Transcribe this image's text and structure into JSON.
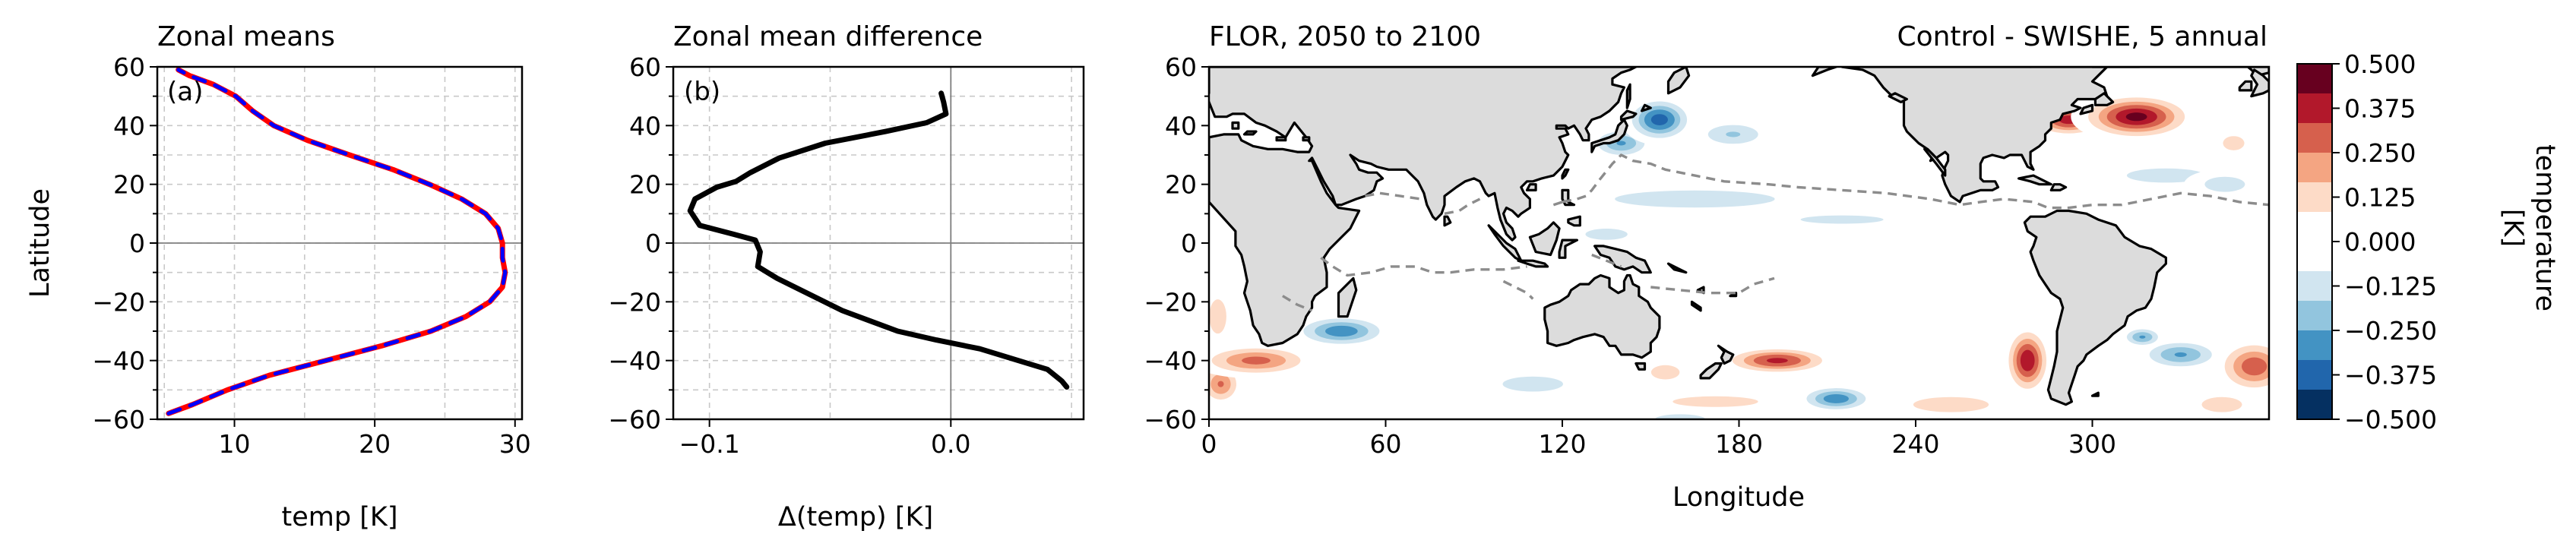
{
  "chart_data": [
    {
      "panel": "a",
      "type": "line",
      "title": "Zonal means",
      "panel_label": "(a)",
      "xlabel": "temp [K]",
      "ylabel": "Latitude",
      "xlim": [
        4.5,
        30.5
      ],
      "ylim": [
        -60,
        60
      ],
      "xticks": [
        10,
        20,
        30
      ],
      "yticks": [
        -60,
        -40,
        -20,
        0,
        20,
        40,
        60
      ],
      "grid": true,
      "series": [
        {
          "color": "#ff0000",
          "x": [
            5.3,
            7.0,
            9.5,
            12.5,
            16.5,
            20.5,
            24.0,
            26.5,
            28.2,
            29.1,
            29.3,
            29.1,
            29.1,
            28.8,
            27.9,
            26.2,
            23.9,
            21.3,
            18.2,
            15.2,
            12.8,
            11.3,
            10.1,
            8.5,
            6.8,
            6.0
          ],
          "y": [
            -58,
            -55,
            -50,
            -45,
            -40,
            -35,
            -30,
            -25,
            -20,
            -15,
            -10,
            -5,
            0,
            5,
            10,
            15,
            20,
            25,
            30,
            35,
            40,
            45,
            50,
            54,
            57,
            59
          ]
        },
        {
          "color": "#0000ff",
          "dashed": true,
          "x": [
            5.3,
            7.0,
            9.5,
            12.5,
            16.5,
            20.5,
            24.0,
            26.5,
            28.2,
            29.1,
            29.3,
            29.1,
            29.1,
            28.8,
            27.9,
            26.2,
            23.9,
            21.3,
            18.2,
            15.2,
            12.8,
            11.3,
            10.1,
            8.5,
            6.8,
            6.0
          ],
          "y": [
            -58,
            -55,
            -50,
            -45,
            -40,
            -35,
            -30,
            -25,
            -20,
            -15,
            -10,
            -5,
            0,
            5,
            10,
            15,
            20,
            25,
            30,
            35,
            40,
            45,
            50,
            54,
            57,
            59
          ]
        }
      ]
    },
    {
      "panel": "b",
      "type": "line",
      "title": "Zonal mean difference",
      "panel_label": "(b)",
      "xlabel": "Δ(temp) [K]",
      "ylabel": "",
      "xlim": [
        -0.115,
        0.055
      ],
      "ylim": [
        -60,
        60
      ],
      "xticks": [
        -0.1,
        0.0
      ],
      "xticklabels": [
        "−0.1",
        "0.0"
      ],
      "yticks": [
        -60,
        -40,
        -20,
        0,
        20,
        40,
        60
      ],
      "grid": true,
      "series": [
        {
          "color": "#000000",
          "x": [
            0.048,
            0.046,
            0.04,
            0.028,
            0.012,
            -0.006,
            -0.022,
            -0.045,
            -0.072,
            -0.08,
            -0.079,
            -0.081,
            -0.09,
            -0.104,
            -0.108,
            -0.106,
            -0.097,
            -0.089,
            -0.083,
            -0.071,
            -0.052,
            -0.027,
            -0.01,
            -0.002,
            -0.003,
            -0.004
          ],
          "y": [
            -49,
            -47,
            -43,
            -40,
            -36,
            -33,
            -30,
            -23,
            -12,
            -8,
            -3,
            1,
            3,
            6,
            11,
            15,
            19,
            21,
            24,
            29,
            34,
            38,
            41,
            44,
            48,
            51
          ]
        }
      ]
    },
    {
      "panel": "c",
      "type": "heatmap",
      "title_left": "FLOR, 2050 to 2100",
      "title_right": "Control - SWISHE, 5 annual",
      "xlabel": "Longitude",
      "ylabel": "",
      "xlim": [
        0,
        360
      ],
      "ylim": [
        -60,
        60
      ],
      "xticks": [
        0,
        60,
        120,
        180,
        240,
        300
      ],
      "yticks": [
        -60,
        -40,
        -20,
        0,
        20,
        40,
        60
      ],
      "colorbar": {
        "label": "temperature\n[K]",
        "label_lines": [
          "temperature",
          "[K]"
        ],
        "vmin": -0.5,
        "vmax": 0.5,
        "ticks": [
          "0.500",
          "0.375",
          "0.250",
          "0.125",
          "0.000",
          "−0.125",
          "−0.250",
          "−0.375",
          "−0.500"
        ],
        "colors": [
          "#053061",
          "#2166ac",
          "#4393c3",
          "#92c5de",
          "#d1e5f0",
          "#ffffff",
          "#ffffff",
          "#fddbc7",
          "#f4a582",
          "#d6604d",
          "#b2182b",
          "#67001f"
        ]
      },
      "anomalies": [
        {
          "lon": 315,
          "lat": 43,
          "sx": 10,
          "sy": 4,
          "value": 0.48
        },
        {
          "lon": 292,
          "lat": 42,
          "sx": 7,
          "sy": 3,
          "value": 0.42
        },
        {
          "lon": 278,
          "lat": -40,
          "sx": 4,
          "sy": 6,
          "value": 0.45
        },
        {
          "lon": 193,
          "lat": -40,
          "sx": 10,
          "sy": 2.5,
          "value": 0.4
        },
        {
          "lon": 16,
          "lat": -40,
          "sx": 11,
          "sy": 3,
          "value": 0.32
        },
        {
          "lon": 4,
          "lat": -48,
          "sx": 4,
          "sy": 4,
          "value": 0.3
        },
        {
          "lon": 3,
          "lat": -25,
          "sx": 3,
          "sy": 6,
          "value": 0.2
        },
        {
          "lon": 355,
          "lat": -42,
          "sx": 7,
          "sy": 5,
          "value": 0.35
        },
        {
          "lon": 172,
          "lat": -54,
          "sx": 24,
          "sy": 3,
          "value": 0.15
        },
        {
          "lon": 252,
          "lat": -55,
          "sx": 15,
          "sy": 3,
          "value": 0.18
        },
        {
          "lon": 344,
          "lat": -55,
          "sx": 8,
          "sy": 3,
          "value": 0.18
        },
        {
          "lon": 155,
          "lat": -44,
          "sx": 8,
          "sy": 4,
          "value": 0.15
        },
        {
          "lon": 258,
          "lat": -15,
          "sx": 8,
          "sy": 5,
          "value": 0.06
        },
        {
          "lon": 348,
          "lat": 34,
          "sx": 6,
          "sy": 4,
          "value": 0.15
        },
        {
          "lon": 330,
          "lat": 56,
          "sx": 12,
          "sy": 3,
          "value": 0.12
        },
        {
          "lon": 185,
          "lat": 55,
          "sx": 15,
          "sy": 3,
          "value": 0.12
        },
        {
          "lon": 270,
          "lat": 25,
          "sx": 6,
          "sy": 5,
          "value": 0.05
        },
        {
          "lon": 165,
          "lat": 38,
          "sx": 8,
          "sy": 3,
          "value": 0.05
        },
        {
          "lon": 153,
          "lat": 42,
          "sx": 6,
          "sy": 4,
          "value": -0.42
        },
        {
          "lon": 140,
          "lat": 34,
          "sx": 6,
          "sy": 3,
          "value": -0.3
        },
        {
          "lon": 178,
          "lat": 37,
          "sx": 8,
          "sy": 3,
          "value": -0.22
        },
        {
          "lon": 165,
          "lat": 15,
          "sx": 28,
          "sy": 3,
          "value": -0.2
        },
        {
          "lon": 215,
          "lat": 8,
          "sx": 20,
          "sy": 2,
          "value": -0.16
        },
        {
          "lon": 135,
          "lat": 3,
          "sx": 15,
          "sy": 4,
          "value": -0.14
        },
        {
          "lon": 45,
          "lat": -30,
          "sx": 9,
          "sy": 3,
          "value": -0.35
        },
        {
          "lon": 213,
          "lat": -53,
          "sx": 7,
          "sy": 2.5,
          "value": -0.35
        },
        {
          "lon": 110,
          "lat": -48,
          "sx": 12,
          "sy": 3,
          "value": -0.18
        },
        {
          "lon": 240,
          "lat": -30,
          "sx": 25,
          "sy": 6,
          "value": -0.12
        },
        {
          "lon": 195,
          "lat": -25,
          "sx": 14,
          "sy": 4,
          "value": -0.1
        },
        {
          "lon": 160,
          "lat": -60,
          "sx": 10,
          "sy": 2,
          "value": -0.18
        },
        {
          "lon": 330,
          "lat": -38,
          "sx": 8,
          "sy": 3,
          "value": -0.3
        },
        {
          "lon": 317,
          "lat": -32,
          "sx": 4,
          "sy": 2,
          "value": -0.3
        },
        {
          "lon": 320,
          "lat": -20,
          "sx": 9,
          "sy": 3,
          "value": -0.1
        },
        {
          "lon": 325,
          "lat": 23,
          "sx": 22,
          "sy": 4,
          "value": -0.15
        },
        {
          "lon": 345,
          "lat": 20,
          "sx": 8,
          "sy": 3,
          "value": -0.18
        },
        {
          "lon": 75,
          "lat": -5,
          "sx": 25,
          "sy": 6,
          "value": -0.12
        },
        {
          "lon": 75,
          "lat": 12,
          "sx": 8,
          "sy": 3,
          "value": -0.1
        },
        {
          "lon": 335,
          "lat": -5,
          "sx": 14,
          "sy": 5,
          "value": -0.1
        },
        {
          "lon": 30,
          "lat": 53,
          "sx": 12,
          "sy": 3,
          "value": -0.1
        },
        {
          "lon": 218,
          "lat": 25,
          "sx": 10,
          "sy": 3,
          "value": -0.1
        },
        {
          "lon": 255,
          "lat": 5,
          "sx": 8,
          "sy": 3,
          "value": -0.1
        }
      ]
    }
  ]
}
